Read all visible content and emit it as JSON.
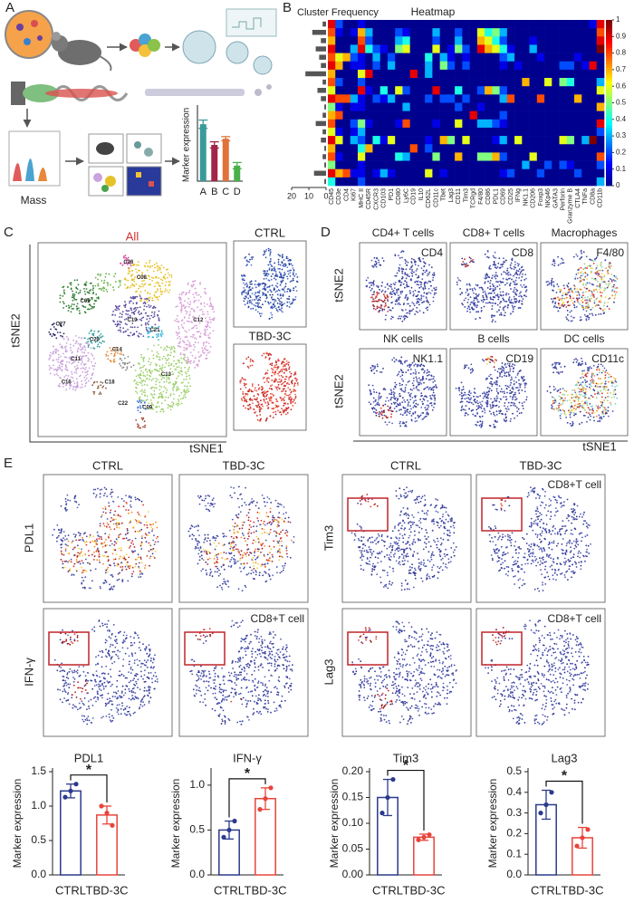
{
  "panel_labels": [
    "A",
    "B",
    "C",
    "D",
    "E"
  ],
  "panel_a": {
    "mass_label": "Mass"
  },
  "panel_c": {
    "all": "All",
    "ctrl": "CTRL",
    "treated": "TBD-3C",
    "ylabel": "tSNE2",
    "xlabel": "tSNE1",
    "cluster_labels": [
      "C08",
      "C13",
      "C09",
      "C19",
      "C05",
      "C20",
      "C21",
      "C11",
      "C14",
      "C16",
      "C22",
      "C18",
      "C27",
      "C26",
      "C12"
    ]
  },
  "panel_d": {
    "cells": [
      {
        "title": "CD4+ T cells",
        "marker": "CD4"
      },
      {
        "title": "CD8+ T cells",
        "marker": "CD8"
      },
      {
        "title": "Macrophages",
        "marker": "F4/80"
      },
      {
        "title": "NK cells",
        "marker": "NK1.1"
      },
      {
        "title": "B cells",
        "marker": "CD19"
      },
      {
        "title": "DC cells",
        "marker": "CD11c"
      }
    ],
    "ylabels": [
      "tSNE2",
      "tSNE2"
    ],
    "xlabel": "tSNE1"
  },
  "panel_e": {
    "columns": [
      "CTRL",
      "TBD-3C",
      "CTRL",
      "TBD-3C"
    ],
    "rows": [
      [
        "PDL1",
        "Tim3"
      ],
      [
        "IFN-γ",
        "Lag3"
      ]
    ],
    "gate_label": "CD8+T cell"
  },
  "chart_data": [
    {
      "type": "bar",
      "ylabel": "Marker expression",
      "categories": [
        "A",
        "B",
        "C",
        "D"
      ],
      "values": [
        0.55,
        0.35,
        0.41,
        0.15
      ],
      "errors": [
        0.04,
        0.03,
        0.02,
        0.03
      ],
      "colors": [
        "#3a9a9a",
        "#a3244a",
        "#e0733a",
        "#4ab04a"
      ],
      "filled": true,
      "ylim": [
        0,
        0.7
      ]
    },
    {
      "type": "barh",
      "title": "Cluster Frequency",
      "values": [
        2,
        8,
        3,
        6,
        4,
        3,
        12,
        2,
        5,
        3,
        1,
        2,
        6,
        2,
        3,
        1,
        2,
        1,
        7,
        1
      ],
      "color": "#555555",
      "xlim": [
        20,
        0
      ],
      "xticks": [
        20,
        10,
        0
      ]
    },
    {
      "type": "heatmap",
      "title": "Heatmap",
      "colormap": "jet",
      "zlim": [
        0,
        1
      ],
      "zticks": [
        0,
        0.1,
        0.2,
        0.3,
        0.4,
        0.5,
        0.6,
        0.7,
        0.8,
        0.9,
        1
      ],
      "x_labels": [
        "CD45",
        "CD3e",
        "CD4",
        "Ki67",
        "MHC II",
        "CD45R",
        "CXCR3",
        "CD103",
        "PD1",
        "CD80",
        "Ly6C",
        "CD19",
        "IL10",
        "CD62L",
        "CD11c",
        "Tbet",
        "Lag3",
        "CD11",
        "Tim3",
        "TCRgd",
        "F4/80",
        "CD86",
        "PDL1",
        "CD69",
        "CD25",
        "IFNg",
        "NK1.1",
        "CD206",
        "Foxp3",
        "NKp46",
        "GATA3",
        "Perforin",
        "Granzyme B",
        "CTLA4",
        "TNFa",
        "CD8a",
        "CD11b"
      ],
      "values": [
        [
          0.9,
          0.2,
          0,
          0,
          0.1,
          0,
          0,
          0,
          0,
          0,
          0,
          0,
          0,
          0,
          0,
          0,
          0,
          0,
          0,
          0,
          0,
          0,
          0,
          0,
          0,
          0,
          0,
          0,
          0,
          0,
          0,
          0,
          0,
          0,
          0,
          0.1,
          0.9
        ],
        [
          0.8,
          0.1,
          0,
          0.1,
          0.7,
          0.3,
          0,
          0,
          0,
          0.2,
          0.1,
          0,
          0,
          0,
          0.3,
          0,
          0,
          0.2,
          0,
          0,
          0.6,
          0.4,
          0.5,
          0.3,
          0,
          0,
          0,
          0,
          0,
          0,
          0,
          0,
          0,
          0,
          0,
          0,
          0.8
        ],
        [
          0.7,
          0,
          0,
          0,
          0.8,
          0.2,
          0,
          0,
          0,
          0.3,
          0.4,
          0,
          0,
          0,
          0.2,
          0,
          0,
          0.3,
          0,
          0,
          0.7,
          0.6,
          0.4,
          0.2,
          0,
          0,
          0,
          0.1,
          0,
          0,
          0,
          0,
          0,
          0,
          0,
          0,
          0.9
        ],
        [
          0.9,
          0,
          0,
          0.3,
          0.9,
          0.4,
          0.2,
          0.1,
          0,
          0.5,
          0.6,
          0,
          0,
          0,
          0.6,
          0,
          0.1,
          0.5,
          0.2,
          0,
          0.9,
          0.7,
          0.6,
          0.4,
          0.1,
          0,
          0,
          0.3,
          0,
          0,
          0,
          0,
          0,
          0,
          0,
          0,
          1
        ],
        [
          0.8,
          0.6,
          0.7,
          0.2,
          0.1,
          0,
          0.3,
          0,
          0.2,
          0,
          0,
          0,
          0,
          0.4,
          0,
          0.3,
          0.1,
          0,
          0.1,
          0,
          0,
          0,
          0,
          0.2,
          0.3,
          0,
          0,
          0,
          0.1,
          0,
          0,
          0,
          0,
          0.1,
          0,
          0,
          0
        ],
        [
          0.9,
          0.7,
          0,
          0.1,
          0.1,
          0,
          0.2,
          0,
          0.3,
          0,
          0,
          0,
          0,
          0.3,
          0,
          0.5,
          0.2,
          0,
          0.2,
          0,
          0,
          0,
          0,
          0.1,
          0,
          0.1,
          0,
          0,
          0,
          0,
          0,
          0.2,
          0.2,
          0,
          0.1,
          0.9,
          0
        ],
        [
          0.7,
          0,
          0,
          0,
          0.6,
          0.9,
          0,
          0,
          0,
          0,
          0,
          0.9,
          0,
          0.3,
          0,
          0,
          0,
          0,
          0,
          0,
          0,
          0,
          0,
          0,
          0,
          0,
          0,
          0,
          0,
          0,
          0,
          0,
          0,
          0,
          0,
          0,
          0
        ],
        [
          0.8,
          0.2,
          0,
          0,
          0.2,
          0,
          0,
          0,
          0,
          0,
          0,
          0,
          0,
          0,
          0,
          0,
          0,
          0,
          0,
          0,
          0,
          0,
          0,
          0,
          0,
          0,
          0.7,
          0,
          0,
          0.6,
          0,
          0.5,
          0.4,
          0,
          0,
          0,
          0.3
        ],
        [
          0.6,
          0,
          0,
          0,
          0.9,
          0.1,
          0,
          0.4,
          0,
          0.6,
          0.2,
          0,
          0,
          0,
          0.9,
          0,
          0,
          0.4,
          0,
          0,
          0.2,
          0.7,
          0.5,
          0.2,
          0,
          0,
          0,
          0,
          0,
          0,
          0,
          0,
          0,
          0,
          0,
          0,
          0.6
        ],
        [
          0.9,
          0.8,
          0.8,
          0.3,
          0.1,
          0,
          0.2,
          0.1,
          0.3,
          0,
          0,
          0,
          0,
          0.2,
          0,
          0.2,
          0.2,
          0,
          0.2,
          0,
          0,
          0,
          0,
          0.3,
          0.8,
          0,
          0,
          0,
          0.8,
          0,
          0,
          0,
          0,
          0.7,
          0,
          0,
          0
        ],
        [
          0.5,
          0.1,
          0,
          0.1,
          0.1,
          0,
          0,
          0,
          0,
          0,
          0.3,
          0,
          0,
          0,
          0,
          0,
          0,
          0.2,
          0,
          0,
          0.1,
          0,
          0,
          0,
          0,
          0,
          0,
          0,
          0,
          0,
          0,
          0,
          0,
          0,
          0,
          0,
          0.7
        ],
        [
          0.7,
          0.8,
          0,
          0,
          0,
          0,
          0,
          0,
          0,
          0,
          0,
          0,
          0,
          0,
          0,
          0,
          0,
          0,
          0,
          0.9,
          0,
          0,
          0,
          0.2,
          0,
          0,
          0,
          0,
          0,
          0,
          0,
          0,
          0,
          0,
          0,
          0,
          0
        ],
        [
          0.8,
          0,
          0,
          0.2,
          0.5,
          0.1,
          0,
          0,
          0,
          0.1,
          0.8,
          0,
          0,
          0,
          0.1,
          0,
          0,
          0.6,
          0,
          0,
          0.3,
          0.3,
          0.2,
          0.1,
          0,
          0,
          0,
          0,
          0,
          0,
          0,
          0,
          0,
          0,
          0,
          0,
          0.9
        ],
        [
          0.6,
          0.1,
          0,
          0.1,
          0.3,
          0,
          0,
          0,
          0,
          0,
          0,
          0,
          0,
          0,
          0,
          0,
          0,
          0,
          0,
          0,
          0,
          0,
          0,
          0,
          0,
          0,
          0,
          0,
          0,
          0,
          0,
          0,
          0,
          0,
          0,
          0,
          0.2
        ],
        [
          0.9,
          0.6,
          0,
          0.3,
          0.2,
          0,
          0.4,
          0.1,
          0.6,
          0,
          0,
          0,
          0,
          0.1,
          0,
          0.7,
          0.5,
          0,
          0.6,
          0,
          0,
          0,
          0.1,
          0.3,
          0,
          0.6,
          0,
          0,
          0,
          0,
          0,
          0.6,
          0.5,
          0,
          0.3,
          1,
          0
        ],
        [
          0.7,
          0,
          0,
          0,
          0.4,
          0.7,
          0,
          0,
          0,
          0,
          0,
          0.8,
          0,
          0.2,
          0,
          0,
          0,
          0,
          0,
          0,
          0,
          0,
          0,
          0,
          0,
          0,
          0,
          0,
          0,
          0,
          0,
          0,
          0,
          0,
          0,
          0,
          0
        ],
        [
          0.8,
          0.1,
          0,
          0,
          0.6,
          0,
          0,
          0,
          0,
          0.4,
          0.3,
          0,
          0,
          0,
          0.5,
          0,
          0,
          0.7,
          0,
          0,
          0.5,
          0.5,
          0.7,
          0.2,
          0,
          0,
          0,
          0.6,
          0,
          0,
          0,
          0,
          0,
          0,
          0,
          0,
          0.8
        ],
        [
          0.5,
          0,
          0,
          0,
          0.1,
          0,
          0,
          0,
          0,
          0,
          0,
          0,
          0,
          0,
          0,
          0,
          0,
          0,
          0,
          0,
          0,
          0,
          0,
          0,
          0,
          0,
          0.3,
          0,
          0,
          0.2,
          0,
          0.2,
          0.1,
          0,
          0,
          0,
          0.2
        ],
        [
          0.9,
          0.7,
          0.8,
          0.1,
          0.1,
          0,
          0.1,
          0.3,
          0.1,
          0,
          0,
          0,
          0,
          0.6,
          0,
          0.1,
          0,
          0,
          0,
          0,
          0,
          0,
          0,
          0.1,
          0.2,
          0,
          0,
          0,
          0.2,
          0,
          0,
          0,
          0,
          0.2,
          0,
          0,
          0
        ],
        [
          0.4,
          0,
          0,
          0,
          0.2,
          0,
          0,
          0,
          0,
          0,
          0,
          0,
          0,
          0,
          0,
          0,
          0,
          0,
          0,
          0,
          0,
          0,
          0,
          0,
          0,
          0,
          0,
          0,
          0,
          0,
          0,
          0,
          0,
          0,
          0,
          0,
          0.3
        ]
      ]
    },
    {
      "type": "bar",
      "title": "PDL1",
      "ylabel": "Marker expression",
      "categories": [
        "CTRL",
        "TBD-3C"
      ],
      "values": [
        1.22,
        0.87
      ],
      "errors": [
        0.1,
        0.13
      ],
      "points": [
        [
          1.13,
          1.22,
          1.32
        ],
        [
          1.0,
          0.9,
          0.72
        ]
      ],
      "colors": [
        "#2b3a8c",
        "#e8443a"
      ],
      "filled": false,
      "annotation": "*",
      "ylim": [
        0,
        1.5
      ],
      "yticks": [
        {
          "value": 0,
          "label": "0.0"
        },
        {
          "value": 0.5,
          "label": "0.5"
        },
        {
          "value": 1,
          "label": "1.0"
        },
        {
          "value": 1.5,
          "label": "1.5"
        }
      ]
    },
    {
      "type": "bar",
      "title": "IFN-γ",
      "ylabel": "Marker expression",
      "categories": [
        "CTRL",
        "TBD-3C"
      ],
      "values": [
        0.5,
        0.85
      ],
      "errors": [
        0.1,
        0.12
      ],
      "points": [
        [
          0.42,
          0.5,
          0.6
        ],
        [
          0.73,
          0.85,
          0.97
        ]
      ],
      "colors": [
        "#2b3a8c",
        "#e8443a"
      ],
      "filled": false,
      "annotation": "*",
      "ylim": [
        0,
        1.15
      ],
      "yticks": [
        {
          "value": 0,
          "label": "0.0"
        },
        {
          "value": 0.5,
          "label": "0.5"
        },
        {
          "value": 1,
          "label": "1.0"
        }
      ]
    },
    {
      "type": "bar",
      "title": "Tim3",
      "ylabel": "Marker expression",
      "categories": [
        "CTRL",
        "TBD-3C"
      ],
      "values": [
        0.15,
        0.073
      ],
      "errors": [
        0.035,
        0.006
      ],
      "points": [
        [
          0.12,
          0.15,
          0.185
        ],
        [
          0.068,
          0.073,
          0.078
        ]
      ],
      "colors": [
        "#2b3a8c",
        "#e8443a"
      ],
      "filled": false,
      "annotation": "*",
      "ylim": [
        0,
        0.2
      ],
      "yticks": [
        {
          "value": 0,
          "label": "0.00"
        },
        {
          "value": 0.05,
          "label": "0.05"
        },
        {
          "value": 0.1,
          "label": "0.10"
        },
        {
          "value": 0.15,
          "label": "0.15"
        },
        {
          "value": 0.2,
          "label": "0.20"
        }
      ]
    },
    {
      "type": "bar",
      "title": "Lag3",
      "ylabel": "Marker expression",
      "categories": [
        "CTRL",
        "TBD-3C"
      ],
      "values": [
        0.34,
        0.18
      ],
      "errors": [
        0.07,
        0.05
      ],
      "points": [
        [
          0.3,
          0.34,
          0.4
        ],
        [
          0.14,
          0.18,
          0.22
        ]
      ],
      "colors": [
        "#2b3a8c",
        "#e8443a"
      ],
      "filled": false,
      "annotation": "*",
      "ylim": [
        0,
        0.5
      ],
      "yticks": [
        {
          "value": 0,
          "label": "0.0"
        },
        {
          "value": 0.1,
          "label": "0.1"
        },
        {
          "value": 0.2,
          "label": "0.2"
        },
        {
          "value": 0.3,
          "label": "0.3"
        },
        {
          "value": 0.4,
          "label": "0.4"
        },
        {
          "value": 0.5,
          "label": "0.5"
        }
      ]
    }
  ]
}
